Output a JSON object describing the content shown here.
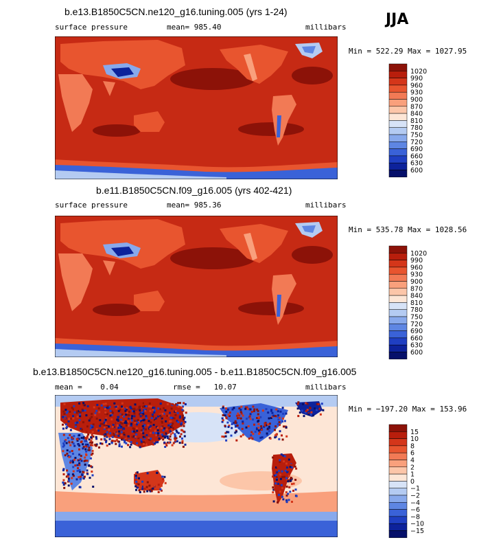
{
  "season": "JJA",
  "chart_data": [
    {
      "type": "heatmap",
      "title": "b.e13.B1850C5CN.ne120_g16.tuning.005 (yrs 1-24)",
      "variable": "surface pressure",
      "mean_label": "mean= 985.40",
      "units": "millibars",
      "minmax_label": "Min = 522.29 Max = 1027.95",
      "min": 522.29,
      "max": 1027.95,
      "levels": [
        "1020",
        "990",
        "960",
        "930",
        "900",
        "870",
        "840",
        "810",
        "780",
        "750",
        "720",
        "690",
        "660",
        "630",
        "600"
      ],
      "colors": [
        "#8c1208",
        "#b81e0c",
        "#d4361a",
        "#e8552f",
        "#f27a55",
        "#f9a07c",
        "#fcc6a9",
        "#fde6d6",
        "#d7e3f7",
        "#b4cbf2",
        "#88a9ec",
        "#5e86e3",
        "#3a62d8",
        "#1f3fc2",
        "#0d229b",
        "#06106a"
      ]
    },
    {
      "type": "heatmap",
      "title": "b.e11.B1850C5CN.f09_g16.005 (yrs 402-421)",
      "variable": "surface pressure",
      "mean_label": "mean= 985.36",
      "units": "millibars",
      "minmax_label": "Min = 535.78 Max = 1028.56",
      "min": 535.78,
      "max": 1028.56,
      "levels": [
        "1020",
        "990",
        "960",
        "930",
        "900",
        "870",
        "840",
        "810",
        "780",
        "750",
        "720",
        "690",
        "660",
        "630",
        "600"
      ],
      "colors": [
        "#8c1208",
        "#b81e0c",
        "#d4361a",
        "#e8552f",
        "#f27a55",
        "#f9a07c",
        "#fcc6a9",
        "#fde6d6",
        "#d7e3f7",
        "#b4cbf2",
        "#88a9ec",
        "#5e86e3",
        "#3a62d8",
        "#1f3fc2",
        "#0d229b",
        "#06106a"
      ]
    },
    {
      "type": "heatmap",
      "title": "b.e13.B1850C5CN.ne120_g16.tuning.005 - b.e11.B1850C5CN.f09_g16.005",
      "mean_label": "mean =    0.04",
      "rmse_label": "rmse =   10.07",
      "units": "millibars",
      "minmax_label": "Min = −197.20 Max = 153.96",
      "min": -197.2,
      "max": 153.96,
      "levels": [
        "15",
        "10",
        "8",
        "6",
        "4",
        "2",
        "1",
        "0",
        "−1",
        "−2",
        "−4",
        "−6",
        "−8",
        "−10",
        "−15"
      ],
      "colors": [
        "#8c1208",
        "#b81e0c",
        "#d4361a",
        "#e8552f",
        "#f27a55",
        "#f9a07c",
        "#fcc6a9",
        "#fde6d6",
        "#d7e3f7",
        "#b4cbf2",
        "#88a9ec",
        "#5e86e3",
        "#3a62d8",
        "#1f3fc2",
        "#0d229b",
        "#06106a"
      ]
    }
  ]
}
